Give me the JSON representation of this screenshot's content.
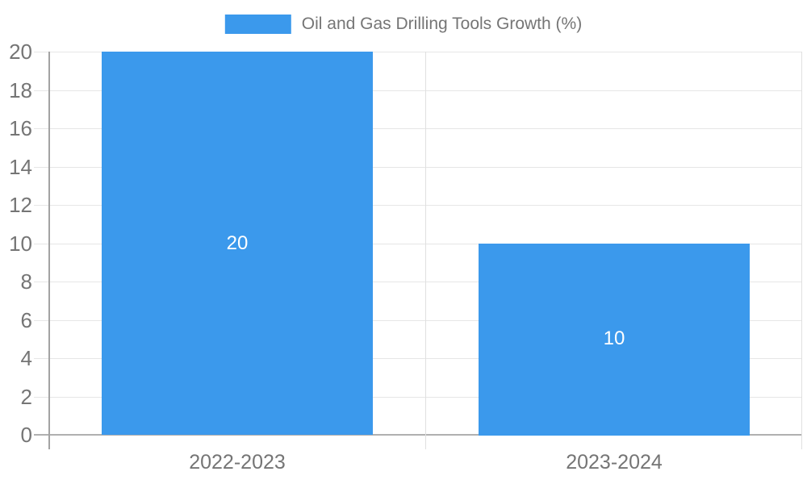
{
  "chart_data": {
    "type": "bar",
    "categories": [
      "2022-2023",
      "2023-2024"
    ],
    "series": [
      {
        "name": "Oil and Gas Drilling Tools Growth (%)",
        "values": [
          20,
          10
        ]
      }
    ],
    "bar_value_labels": [
      "20",
      "10"
    ],
    "ylim": [
      0,
      20
    ],
    "ytick_step": 2,
    "yticks": [
      "0",
      "2",
      "4",
      "6",
      "8",
      "10",
      "12",
      "14",
      "16",
      "18",
      "20"
    ],
    "grid": true,
    "legend_position": "top-center"
  },
  "legend": {
    "label": "Oil and Gas Drilling Tools Growth (%)"
  },
  "colors": {
    "bar": "#3B99EC",
    "bar_value_label": "#FFFFFF",
    "axis_text": "#757575",
    "legend_text": "#757575",
    "gridline": "#E6E6E6",
    "zero_line": "#B0B0B0",
    "axis_line": "#A3A3A3",
    "boundary_line": "#E0E0E0",
    "background": "#FFFFFF"
  }
}
